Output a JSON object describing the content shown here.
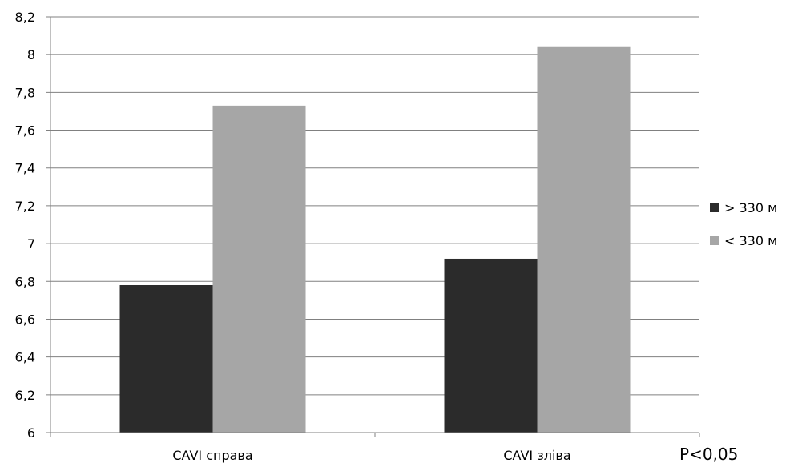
{
  "chart_data": {
    "type": "bar",
    "categories": [
      "CAVI справа",
      "CAVI зліва"
    ],
    "series": [
      {
        "name": "> 330 м",
        "values": [
          6.78,
          6.92
        ],
        "color": "#2b2b2b"
      },
      {
        "name": "< 330 м",
        "values": [
          7.73,
          8.04
        ],
        "color": "#a6a6a6"
      }
    ],
    "ylim": [
      6,
      8.2
    ],
    "yticks": [
      "6",
      "6,2",
      "6,4",
      "6,6",
      "6,8",
      "7",
      "7,2",
      "7,4",
      "7,6",
      "7,8",
      "8",
      "8,2"
    ],
    "grid": true,
    "legend": "right",
    "annotation": "P<0,05"
  }
}
